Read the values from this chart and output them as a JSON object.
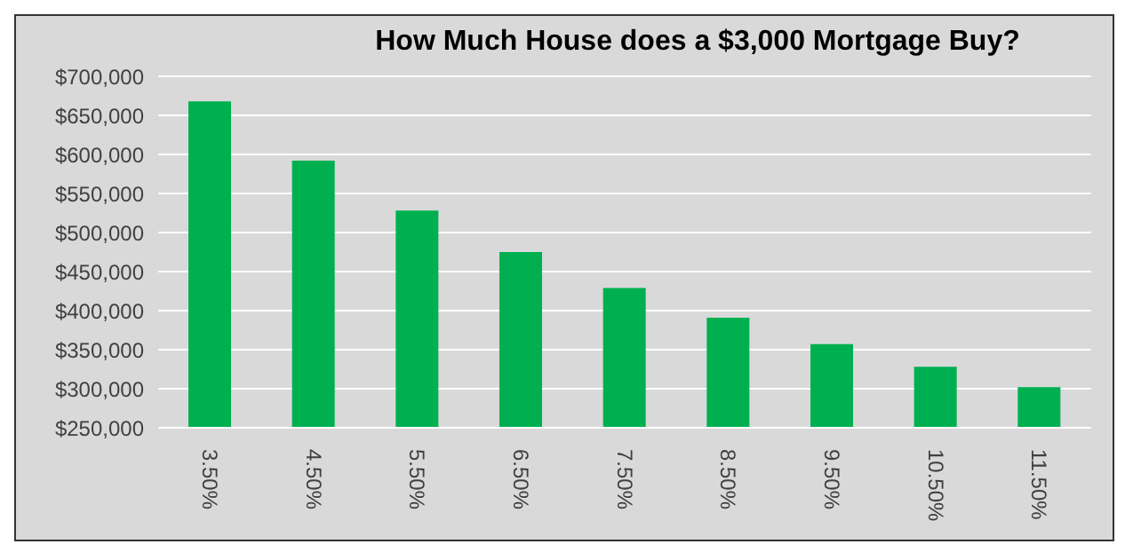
{
  "chart_data": {
    "type": "bar",
    "title": "How Much House does a $3,000 Mortgage Buy?",
    "categories": [
      "3.50%",
      "4.50%",
      "5.50%",
      "6.50%",
      "7.50%",
      "8.50%",
      "9.50%",
      "10.50%",
      "11.50%"
    ],
    "values": [
      668000,
      592000,
      528000,
      475000,
      429000,
      391000,
      357000,
      328000,
      302000
    ],
    "color": "#00b050",
    "ylim": [
      250000,
      700000
    ],
    "yticks": [
      {
        "value": 250000,
        "label": "$250,000"
      },
      {
        "value": 300000,
        "label": "$300,000"
      },
      {
        "value": 350000,
        "label": "$350,000"
      },
      {
        "value": 400000,
        "label": "$400,000"
      },
      {
        "value": 450000,
        "label": "$450,000"
      },
      {
        "value": 500000,
        "label": "$500,000"
      },
      {
        "value": 550000,
        "label": "$550,000"
      },
      {
        "value": 600000,
        "label": "$600,000"
      },
      {
        "value": 650000,
        "label": "$650,000"
      },
      {
        "value": 700000,
        "label": "$700,000"
      }
    ],
    "grid": "y"
  }
}
